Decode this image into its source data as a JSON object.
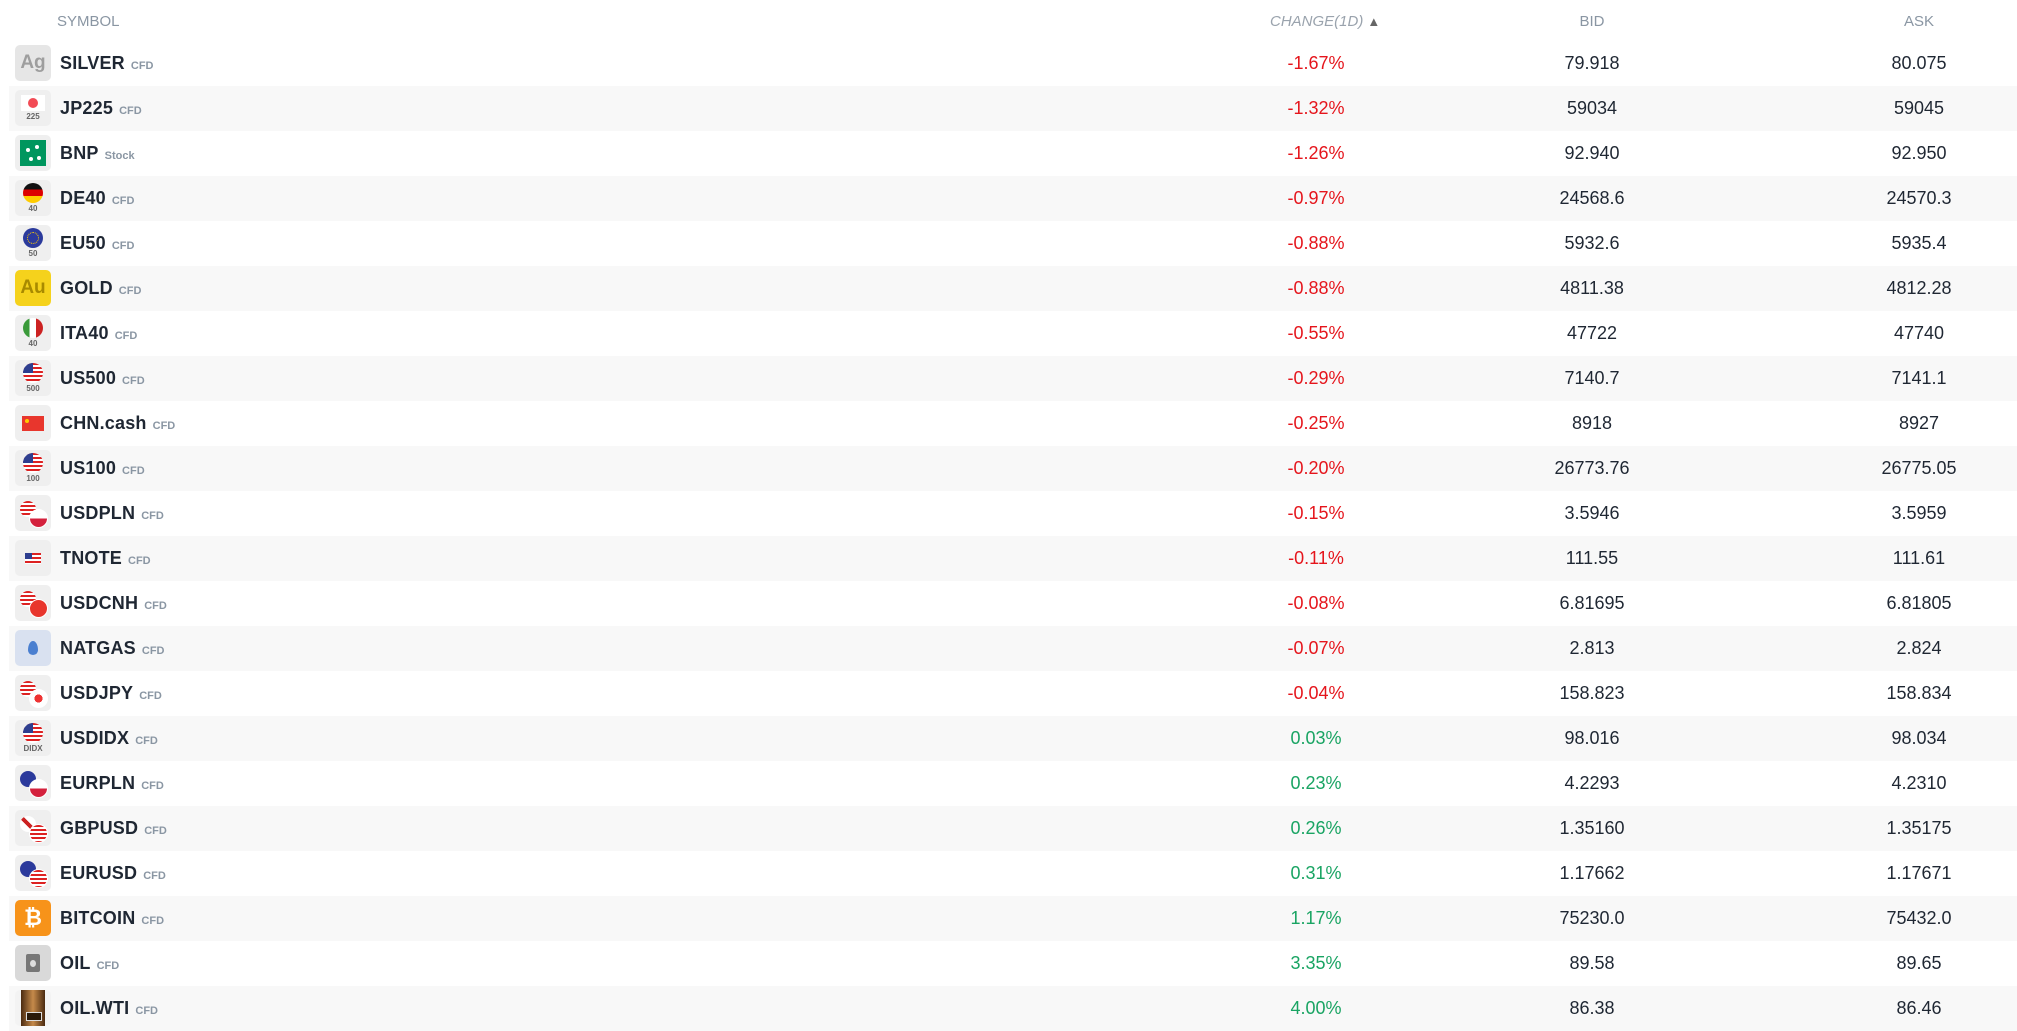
{
  "header": {
    "symbol": "SYMBOL",
    "change": "CHANGE(1D)",
    "sort_indicator": "▲",
    "bid": "BID",
    "ask": "ASK"
  },
  "colors": {
    "negative": "#e5151c",
    "positive": "#19a463"
  },
  "rows": [
    {
      "symbol": "SILVER",
      "type": "CFD",
      "change": "-1.67%",
      "bid": "79.918",
      "ask": "80.075",
      "icon": "silver-ag-icon"
    },
    {
      "symbol": "JP225",
      "type": "CFD",
      "change": "-1.32%",
      "bid": "59034",
      "ask": "59045",
      "icon": "japan-flag-icon",
      "icon_label": "225"
    },
    {
      "symbol": "BNP",
      "type": "Stock",
      "change": "-1.26%",
      "bid": "92.940",
      "ask": "92.950",
      "icon": "bnp-logo-icon"
    },
    {
      "symbol": "DE40",
      "type": "CFD",
      "change": "-0.97%",
      "bid": "24568.6",
      "ask": "24570.3",
      "icon": "germany-flag-icon",
      "icon_label": "40"
    },
    {
      "symbol": "EU50",
      "type": "CFD",
      "change": "-0.88%",
      "bid": "5932.6",
      "ask": "5935.4",
      "icon": "eu-flag-icon",
      "icon_label": "50"
    },
    {
      "symbol": "GOLD",
      "type": "CFD",
      "change": "-0.88%",
      "bid": "4811.38",
      "ask": "4812.28",
      "icon": "gold-au-icon"
    },
    {
      "symbol": "ITA40",
      "type": "CFD",
      "change": "-0.55%",
      "bid": "47722",
      "ask": "47740",
      "icon": "italy-flag-icon",
      "icon_label": "40"
    },
    {
      "symbol": "US500",
      "type": "CFD",
      "change": "-0.29%",
      "bid": "7140.7",
      "ask": "7141.1",
      "icon": "us-flag-icon",
      "icon_label": "500"
    },
    {
      "symbol": "CHN.cash",
      "type": "CFD",
      "change": "-0.25%",
      "bid": "8918",
      "ask": "8927",
      "icon": "china-flag-icon"
    },
    {
      "symbol": "US100",
      "type": "CFD",
      "change": "-0.20%",
      "bid": "26773.76",
      "ask": "26775.05",
      "icon": "us-flag-icon",
      "icon_label": "100"
    },
    {
      "symbol": "USDPLN",
      "type": "CFD",
      "change": "-0.15%",
      "bid": "3.5946",
      "ask": "3.5959",
      "icon": "usd-pln-flags-icon"
    },
    {
      "symbol": "TNOTE",
      "type": "CFD",
      "change": "-0.11%",
      "bid": "111.55",
      "ask": "111.61",
      "icon": "us-small-flag-icon"
    },
    {
      "symbol": "USDCNH",
      "type": "CFD",
      "change": "-0.08%",
      "bid": "6.81695",
      "ask": "6.81805",
      "icon": "usd-cnh-flags-icon"
    },
    {
      "symbol": "NATGAS",
      "type": "CFD",
      "change": "-0.07%",
      "bid": "2.813",
      "ask": "2.824",
      "icon": "gas-flame-icon"
    },
    {
      "symbol": "USDJPY",
      "type": "CFD",
      "change": "-0.04%",
      "bid": "158.823",
      "ask": "158.834",
      "icon": "usd-jpy-flags-icon"
    },
    {
      "symbol": "USDIDX",
      "type": "CFD",
      "change": "0.03%",
      "bid": "98.016",
      "ask": "98.034",
      "icon": "us-flag-icon",
      "icon_label": "DIDX"
    },
    {
      "symbol": "EURPLN",
      "type": "CFD",
      "change": "0.23%",
      "bid": "4.2293",
      "ask": "4.2310",
      "icon": "eur-pln-flags-icon"
    },
    {
      "symbol": "GBPUSD",
      "type": "CFD",
      "change": "0.26%",
      "bid": "1.35160",
      "ask": "1.35175",
      "icon": "gbp-usd-flags-icon"
    },
    {
      "symbol": "EURUSD",
      "type": "CFD",
      "change": "0.31%",
      "bid": "1.17662",
      "ask": "1.17671",
      "icon": "eur-usd-flags-icon"
    },
    {
      "symbol": "BITCOIN",
      "type": "CFD",
      "change": "1.17%",
      "bid": "75230.0",
      "ask": "75432.0",
      "icon": "bitcoin-icon"
    },
    {
      "symbol": "OIL",
      "type": "CFD",
      "change": "3.35%",
      "bid": "89.58",
      "ask": "89.65",
      "icon": "oil-barrel-icon"
    },
    {
      "symbol": "OIL.WTI",
      "type": "CFD",
      "change": "4.00%",
      "bid": "86.38",
      "ask": "86.46",
      "icon": "wti-barrel-icon"
    }
  ]
}
